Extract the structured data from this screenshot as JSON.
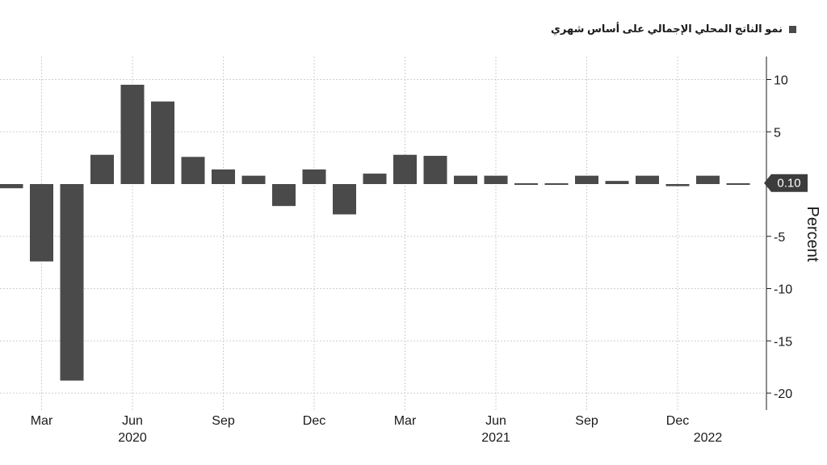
{
  "legend": {
    "label": "نمو الناتج المحلي الإجمالي على أساس شهري",
    "color": "#4a4a4a"
  },
  "chart_data": {
    "type": "bar",
    "categories": [
      "2020-02",
      "2020-03",
      "2020-04",
      "2020-05",
      "2020-06",
      "2020-07",
      "2020-08",
      "2020-09",
      "2020-10",
      "2020-11",
      "2020-12",
      "2021-01",
      "2021-02",
      "2021-03",
      "2021-04",
      "2021-05",
      "2021-06",
      "2021-07",
      "2021-08",
      "2021-09",
      "2021-10",
      "2021-11",
      "2021-12",
      "2022-01",
      "2022-02"
    ],
    "values": [
      -0.4,
      -7.4,
      -18.8,
      2.8,
      9.5,
      7.9,
      2.6,
      1.4,
      0.8,
      -2.1,
      1.4,
      -2.9,
      1.0,
      2.8,
      2.7,
      0.8,
      0.8,
      -0.1,
      0.1,
      0.8,
      0.3,
      0.8,
      -0.2,
      0.8,
      0.1
    ],
    "series_name": "نمو الناتج المحلي الإجمالي على أساس شهري",
    "ylabel": "Percent",
    "ylim": [
      -21,
      12
    ],
    "yticks": [
      10,
      5,
      0,
      -5,
      -10,
      -15,
      -20
    ],
    "ytick_labels": [
      "10",
      "5",
      "",
      "-5",
      "-10",
      "-15",
      "-20"
    ],
    "month_ticks": [
      {
        "category": "2020-03",
        "label": "Mar"
      },
      {
        "category": "2020-06",
        "label": "Jun"
      },
      {
        "category": "2020-09",
        "label": "Sep"
      },
      {
        "category": "2020-12",
        "label": "Dec"
      },
      {
        "category": "2021-03",
        "label": "Mar"
      },
      {
        "category": "2021-06",
        "label": "Jun"
      },
      {
        "category": "2021-09",
        "label": "Sep"
      },
      {
        "category": "2021-12",
        "label": "Dec"
      }
    ],
    "year_labels": [
      {
        "category": "2020-06",
        "label": "2020"
      },
      {
        "category": "2021-06",
        "label": "2021"
      },
      {
        "category": "2022-01",
        "label": "2022"
      }
    ],
    "last_value_label": "0.10",
    "grid": true,
    "legend_position": "top-right",
    "bar_color": "#4a4a4a"
  }
}
